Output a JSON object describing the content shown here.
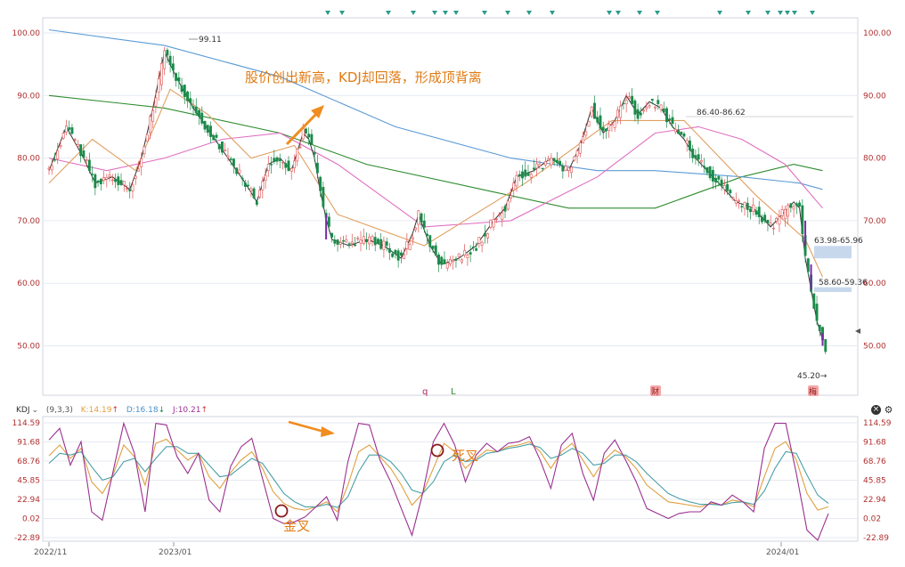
{
  "indicator_header": {
    "name": "KDJ",
    "params": "(9,3,3)",
    "k_label": "K:14.19",
    "d_label": "D:16.18",
    "j_label": "J:10.21",
    "k_arrow": "↑",
    "d_arrow": "↓",
    "j_arrow": "↑",
    "dropdown_icon": "chevron-down-icon",
    "close_icon": "close-icon",
    "settings_icon": "gear-icon"
  },
  "annotations": {
    "main_callout": "股价创出新高，KDJ却回落，形成顶背离",
    "golden_cross": "金叉",
    "death_cross": "死叉",
    "high_label": "99.11",
    "low_label": "45.20→",
    "gap1": "63.98-65.96",
    "gap2": "58.60-59.36",
    "level_label": "86.40-86.62",
    "marker_q": "q",
    "marker_l": "L",
    "badge_cai": "财",
    "badge_mei": "梅"
  },
  "colors": {
    "up": "#e05050",
    "down": "#1a8a4a",
    "ma_short": "#333333",
    "ma_mid": "#e0a060",
    "ma_pink": "#e070c0",
    "ma_long_green": "#2e8b2e",
    "ma_long_blue": "#5b9bd5",
    "k_line": "#e0a040",
    "d_line": "#4aa0a8",
    "j_line": "#9b3090",
    "callout": "#e07b14",
    "gap_box": "#c8d8ec"
  },
  "chart_data": [
    {
      "type": "candlestick",
      "title": "",
      "y_ticks": [
        "100.00",
        "90.00",
        "80.00",
        "70.00",
        "60.00",
        "50.00"
      ],
      "ylim": [
        44,
        102
      ],
      "x_ticks": [
        "2022/11",
        "2023/01",
        "2024/01"
      ],
      "x_range": [
        "2022-11",
        "2024-02"
      ],
      "grid": true,
      "close_path": [
        [
          0,
          78
        ],
        [
          6,
          85
        ],
        [
          12,
          80
        ],
        [
          16,
          76
        ],
        [
          22,
          77
        ],
        [
          28,
          75
        ],
        [
          32,
          80
        ],
        [
          36,
          88
        ],
        [
          40,
          97
        ],
        [
          44,
          93
        ],
        [
          50,
          88
        ],
        [
          56,
          84
        ],
        [
          62,
          80
        ],
        [
          68,
          76
        ],
        [
          72,
          73
        ],
        [
          76,
          79
        ],
        [
          80,
          80
        ],
        [
          84,
          78
        ],
        [
          88,
          84
        ],
        [
          90,
          83
        ],
        [
          92,
          80
        ],
        [
          95,
          72
        ],
        [
          98,
          67
        ],
        [
          104,
          66
        ],
        [
          110,
          67
        ],
        [
          116,
          66
        ],
        [
          122,
          64
        ],
        [
          126,
          68
        ],
        [
          128,
          71
        ],
        [
          132,
          66
        ],
        [
          136,
          63
        ],
        [
          142,
          64
        ],
        [
          148,
          66
        ],
        [
          154,
          70
        ],
        [
          158,
          72
        ],
        [
          162,
          77
        ],
        [
          168,
          78
        ],
        [
          174,
          80
        ],
        [
          180,
          78
        ],
        [
          184,
          82
        ],
        [
          188,
          88
        ],
        [
          192,
          84
        ],
        [
          196,
          86
        ],
        [
          200,
          90
        ],
        [
          204,
          87
        ],
        [
          208,
          89
        ],
        [
          212,
          88
        ],
        [
          216,
          85
        ],
        [
          220,
          83
        ],
        [
          224,
          80
        ],
        [
          228,
          78
        ],
        [
          232,
          76
        ],
        [
          238,
          73
        ],
        [
          244,
          72
        ],
        [
          250,
          69
        ],
        [
          254,
          71
        ],
        [
          258,
          73
        ],
        [
          260,
          72
        ],
        [
          262,
          64
        ],
        [
          264,
          59
        ],
        [
          266,
          54
        ],
        [
          268,
          51
        ],
        [
          270,
          46
        ]
      ],
      "high": 99.11,
      "low": 45.2,
      "gaps": [
        [
          63.98,
          65.96
        ],
        [
          58.6,
          59.36
        ]
      ],
      "reference_band": [
        86.4,
        86.62
      ],
      "moving_averages": [
        {
          "points": [
            [
              0,
              90
            ],
            [
              40,
              88
            ],
            [
              80,
              84
            ],
            [
              110,
              79
            ],
            [
              150,
              75
            ],
            [
              180,
              72
            ],
            [
              210,
              72
            ],
            [
              240,
              77
            ],
            [
              258,
              79
            ],
            [
              268,
              78
            ]
          ]
        },
        {
          "points": [
            [
              0,
              100.5
            ],
            [
              40,
              98
            ],
            [
              80,
              93
            ],
            [
              120,
              85
            ],
            [
              160,
              80
            ],
            [
              190,
              78
            ],
            [
              210,
              78
            ],
            [
              240,
              77
            ],
            [
              260,
              76
            ],
            [
              268,
              75
            ]
          ]
        },
        {
          "points": [
            [
              0,
              80
            ],
            [
              20,
              78
            ],
            [
              40,
              80
            ],
            [
              60,
              83
            ],
            [
              80,
              84
            ],
            [
              100,
              79
            ],
            [
              130,
              69
            ],
            [
              160,
              70
            ],
            [
              190,
              77
            ],
            [
              210,
              84
            ],
            [
              225,
              85
            ],
            [
              240,
              83
            ],
            [
              255,
              79
            ],
            [
              268,
              72
            ]
          ]
        },
        {
          "points": [
            [
              0,
              76
            ],
            [
              15,
              83
            ],
            [
              30,
              78
            ],
            [
              42,
              91
            ],
            [
              55,
              87
            ],
            [
              70,
              80
            ],
            [
              85,
              82
            ],
            [
              100,
              71
            ],
            [
              130,
              66
            ],
            [
              165,
              76
            ],
            [
              195,
              86
            ],
            [
              220,
              86
            ],
            [
              245,
              74
            ],
            [
              262,
              67
            ],
            [
              268,
              61
            ]
          ]
        }
      ]
    },
    {
      "type": "line",
      "title": "",
      "y_ticks": [
        "114.59",
        "91.68",
        "68.76",
        "45.85",
        "22.94",
        "0.02",
        "-22.89"
      ],
      "ylim": [
        -22.89,
        114.59
      ],
      "series": [
        {
          "name": "K",
          "values": [
            75,
            88,
            72,
            84,
            44,
            30,
            52,
            88,
            74,
            40,
            90,
            95,
            82,
            70,
            78,
            50,
            36,
            55,
            70,
            80,
            60,
            32,
            18,
            12,
            10,
            14,
            20,
            8,
            40,
            80,
            88,
            74,
            60,
            40,
            16,
            30,
            60,
            90,
            80,
            60,
            72,
            82,
            80,
            86,
            88,
            92,
            80,
            60,
            80,
            90,
            70,
            50,
            70,
            82,
            74,
            60,
            40,
            30,
            20,
            18,
            16,
            14,
            18,
            16,
            22,
            20,
            14,
            50,
            84,
            92,
            70,
            30,
            10,
            14
          ]
        },
        {
          "name": "D",
          "values": [
            66,
            78,
            76,
            80,
            62,
            46,
            50,
            68,
            72,
            56,
            72,
            86,
            86,
            78,
            78,
            64,
            50,
            52,
            62,
            72,
            66,
            48,
            30,
            20,
            14,
            14,
            17,
            13,
            26,
            56,
            76,
            76,
            68,
            54,
            34,
            30,
            44,
            68,
            76,
            68,
            70,
            78,
            80,
            84,
            86,
            89,
            85,
            72,
            76,
            84,
            78,
            64,
            66,
            76,
            76,
            68,
            54,
            42,
            30,
            24,
            20,
            17,
            17,
            16,
            19,
            20,
            17,
            33,
            60,
            80,
            78,
            52,
            28,
            18
          ]
        },
        {
          "name": "J",
          "values": [
            94,
            108,
            64,
            92,
            8,
            -2,
            56,
            114,
            78,
            8,
            114,
            112,
            74,
            54,
            78,
            22,
            8,
            62,
            86,
            96,
            48,
            0,
            -6,
            -4,
            2,
            14,
            26,
            -2,
            68,
            114,
            112,
            70,
            44,
            12,
            -20,
            30,
            92,
            114,
            88,
            44,
            76,
            90,
            80,
            90,
            92,
            98,
            70,
            36,
            88,
            102,
            54,
            22,
            78,
            94,
            70,
            44,
            12,
            6,
            0,
            6,
            8,
            8,
            20,
            16,
            28,
            20,
            8,
            84,
            114,
            114,
            54,
            -14,
            -26,
            6
          ]
        }
      ]
    }
  ]
}
